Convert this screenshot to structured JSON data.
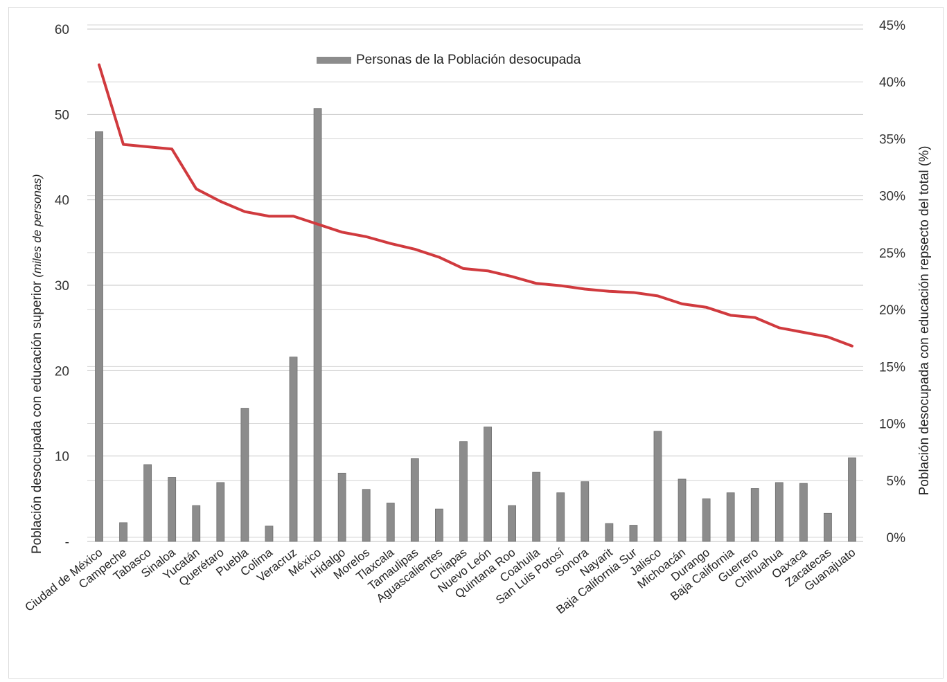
{
  "chart_data": {
    "type": "bar",
    "legend": {
      "label": "Personas de la Población desocupada",
      "placement": "top-center"
    },
    "ylabel_left": {
      "main": "Población desocupada con educación superior",
      "unit": "(miles de personas)"
    },
    "ylabel_right": "Población desocupada con educación repsecto del total (%)",
    "ylim_left": [
      0,
      60
    ],
    "ylim_right": [
      0,
      45
    ],
    "left_ticks": [
      "-",
      "10",
      "20",
      "30",
      "40",
      "50",
      "60"
    ],
    "right_ticks": [
      "0%",
      "5%",
      "10%",
      "15%",
      "20%",
      "25%",
      "30%",
      "35%",
      "40%",
      "45%"
    ],
    "grid": true,
    "categories": [
      "Ciudad de México",
      "Campeche",
      "Tabasco",
      "Sinaloa",
      "Yucatán",
      "Querétaro",
      "Puebla",
      "Colima",
      "Veracruz",
      "México",
      "Hidalgo",
      "Morelos",
      "Tlaxcala",
      "Tamaulipas",
      "Aguascalientes",
      "Chiapas",
      "Nuevo León",
      "Quintana Roo",
      "Coahuila",
      "San Luis Potosí",
      "Sonora",
      "Nayarit",
      "Baja California Sur",
      "Jalisco",
      "Michoacán",
      "Durango",
      "Baja California",
      "Guerrero",
      "Chihuahua",
      "Oaxaca",
      "Zacatecas",
      "Guanajuato"
    ],
    "series": [
      {
        "name": "Personas de la Población desocupada",
        "type": "bar",
        "axis": "left",
        "color": "#8c8c8c",
        "values": [
          48.0,
          2.2,
          9.0,
          7.5,
          4.2,
          6.9,
          15.6,
          1.8,
          21.6,
          50.7,
          8.0,
          6.1,
          4.5,
          9.7,
          3.8,
          11.7,
          13.4,
          4.2,
          8.1,
          5.7,
          7.0,
          2.1,
          1.9,
          12.9,
          7.3,
          5.0,
          5.7,
          6.2,
          6.9,
          6.8,
          3.3,
          9.8
        ]
      },
      {
        "type": "line",
        "axis": "right",
        "color": "#d03a3e",
        "values": [
          41.5,
          34.5,
          34.3,
          34.1,
          30.6,
          29.5,
          28.6,
          28.2,
          28.2,
          27.5,
          26.8,
          26.4,
          25.8,
          25.3,
          24.6,
          23.6,
          23.4,
          22.9,
          22.3,
          22.1,
          21.8,
          21.6,
          21.5,
          21.2,
          20.5,
          20.2,
          19.5,
          19.3,
          18.4,
          18.0,
          17.6,
          16.8
        ]
      }
    ]
  }
}
